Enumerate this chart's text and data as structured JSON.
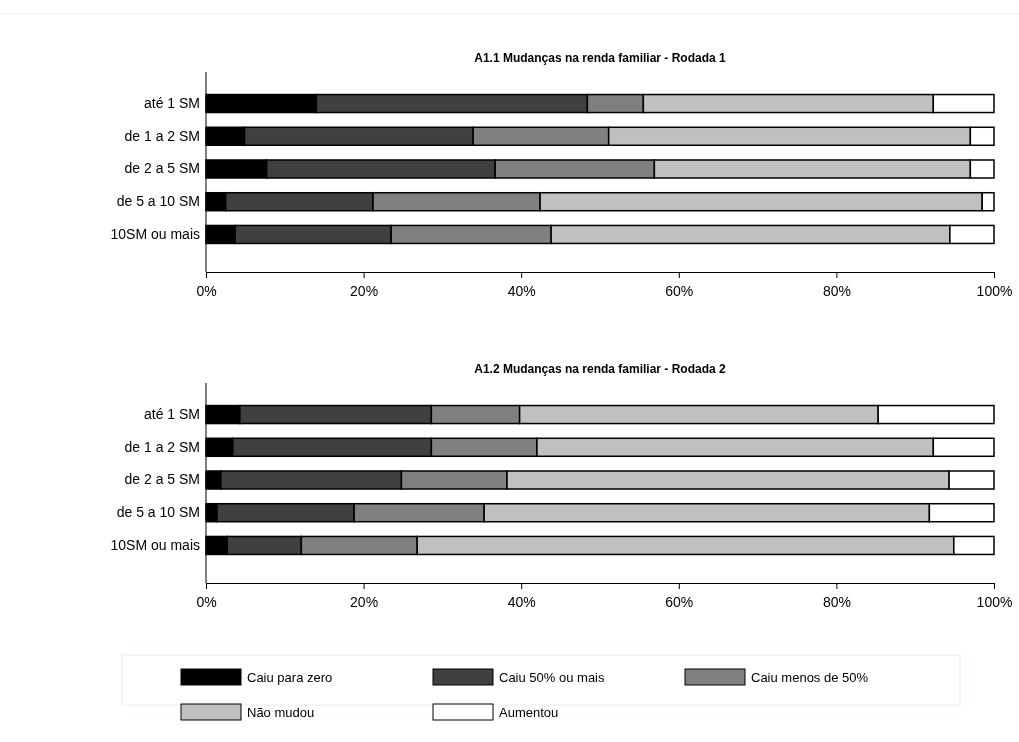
{
  "chart_data": [
    {
      "type": "bar",
      "orientation": "horizontal",
      "stacked": true,
      "title": "A1.1 Mudanças na renda familiar  - Rodada 1",
      "categories": [
        "até 1 SM",
        "de 1 a 2 SM",
        "de 2 a 5 SM",
        "de 5 a 10 SM",
        "10SM ou mais"
      ],
      "series": [
        {
          "color": "#000000",
          "values": [
            14.0,
            4.9,
            7.7,
            2.5,
            3.7
          ]
        },
        {
          "color": "#404040",
          "values": [
            34.4,
            29.0,
            29.0,
            18.7,
            19.8
          ]
        },
        {
          "color": "#808080",
          "values": [
            7.1,
            17.2,
            20.2,
            21.2,
            20.3
          ]
        },
        {
          "color": "#c0c0c0",
          "values": [
            36.8,
            45.9,
            40.1,
            56.1,
            50.6
          ]
        },
        {
          "color": "#ffffff",
          "values": [
            7.7,
            3.0,
            3.0,
            1.5,
            5.6
          ]
        }
      ],
      "xlim": [
        0,
        100
      ],
      "xticks": [
        {
          "value": 0,
          "label": "0%"
        },
        {
          "value": 20,
          "label": "20%"
        },
        {
          "value": 40,
          "label": "40%"
        },
        {
          "value": 60,
          "label": "60%"
        },
        {
          "value": 80,
          "label": "80%"
        },
        {
          "value": 100,
          "label": "100%"
        }
      ],
      "grid": false,
      "legend": false
    },
    {
      "type": "bar",
      "orientation": "horizontal",
      "stacked": true,
      "title": "A1.2 Mudanças na renda familiar  - Rodada 2",
      "categories": [
        "até 1 SM",
        "de 1 a 2 SM",
        "de 2 a 5 SM",
        "de 5 a 10 SM",
        "10SM ou mais"
      ],
      "series": [
        {
          "name": "Caiu para zero",
          "color": "#000000",
          "values": [
            4.3,
            3.4,
            1.9,
            1.4,
            2.7
          ]
        },
        {
          "name": "Caiu 50% ou mais",
          "color": "#404040",
          "values": [
            24.3,
            25.2,
            22.9,
            17.4,
            9.4
          ]
        },
        {
          "name": "Caiu menos de 50%",
          "color": "#808080",
          "values": [
            11.2,
            13.4,
            13.4,
            16.5,
            14.7
          ]
        },
        {
          "name": "Não mudou",
          "color": "#c0c0c0",
          "values": [
            45.5,
            50.3,
            56.1,
            56.5,
            68.1
          ]
        },
        {
          "name": "Aumentou",
          "color": "#ffffff",
          "values": [
            14.7,
            7.7,
            5.7,
            8.2,
            5.1
          ]
        }
      ],
      "xlim": [
        0,
        100
      ],
      "xticks": [
        {
          "value": 0,
          "label": "0%"
        },
        {
          "value": 20,
          "label": "20%"
        },
        {
          "value": 40,
          "label": "40%"
        },
        {
          "value": 60,
          "label": "60%"
        },
        {
          "value": 80,
          "label": "80%"
        },
        {
          "value": 100,
          "label": "100%"
        }
      ],
      "grid": false,
      "legend": "bottom"
    }
  ]
}
